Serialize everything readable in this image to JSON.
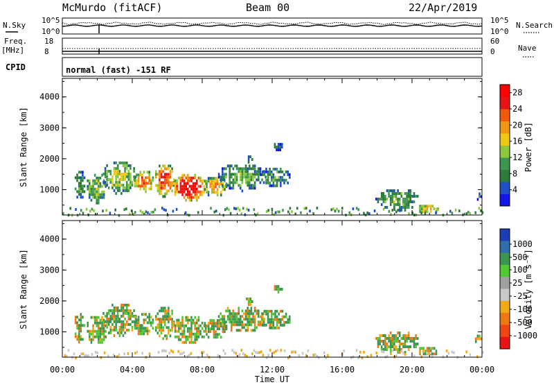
{
  "header": {
    "station": "McMurdo (fitACF)",
    "beam": "Beam 00",
    "date": "22/Apr/2019"
  },
  "strips": {
    "nsky_label": "N.Sky",
    "nsky_ticks": [
      "10^5",
      "10^0"
    ],
    "nsearch_label": "N.Search",
    "nsearch_ticks": [
      "10^5",
      "10^0"
    ],
    "freq_label": "Freq.",
    "freq_unit": "[MHz]",
    "freq_ticks": [
      "18",
      "8"
    ],
    "nave_label": "Nave",
    "nave_ticks": [
      "60",
      "0"
    ],
    "cpid_label": "CPID",
    "cpid_text": "normal (fast) -151 RF"
  },
  "colors": {
    "power_scale": [
      "#1414e6",
      "#1e50c8",
      "#2e7a3a",
      "#3c9650",
      "#8cc83c",
      "#f0c814",
      "#f09614",
      "#f05a0a",
      "#e61414",
      "#ff0000"
    ],
    "velocity_scale": [
      "#e61414",
      "#f04614",
      "#f07814",
      "#f0aa14",
      "#c8c8c8",
      "#a0a0a0",
      "#50c832",
      "#3c9650",
      "#2e6eaa",
      "#1e3cb4"
    ]
  },
  "chart_data": [
    {
      "type": "heatmap",
      "name": "power",
      "ylabel": "Slant Range [km]",
      "yticks": [
        "4000",
        "3000",
        "2000",
        "1000"
      ],
      "ylim": [
        180,
        4600
      ],
      "xticks": [
        "00:00",
        "04:00",
        "08:00",
        "12:00",
        "16:00",
        "20:00",
        "00:00"
      ],
      "xlim_hours": [
        0,
        24
      ],
      "colorbar_label": "Power [dB]",
      "colorbar_ticks": [
        "28",
        "24",
        "20",
        "16",
        "12",
        "8",
        "4"
      ],
      "colorbar_range": [
        0,
        30
      ]
    },
    {
      "type": "heatmap",
      "name": "velocity",
      "ylabel": "Slant Range [km]",
      "yticks": [
        "4000",
        "3000",
        "2000",
        "1000"
      ],
      "ylim": [
        180,
        4600
      ],
      "xticks": [
        "00:00",
        "04:00",
        "08:00",
        "12:00",
        "16:00",
        "20:00",
        "00:00"
      ],
      "xlim_hours": [
        0,
        24
      ],
      "xlabel": "Time UT",
      "colorbar_label": "Velocity [m s⁻¹]",
      "colorbar_ticks": [
        "1000",
        "500",
        "100",
        "25",
        "-25",
        "-100",
        "-500",
        "-1000"
      ]
    }
  ]
}
